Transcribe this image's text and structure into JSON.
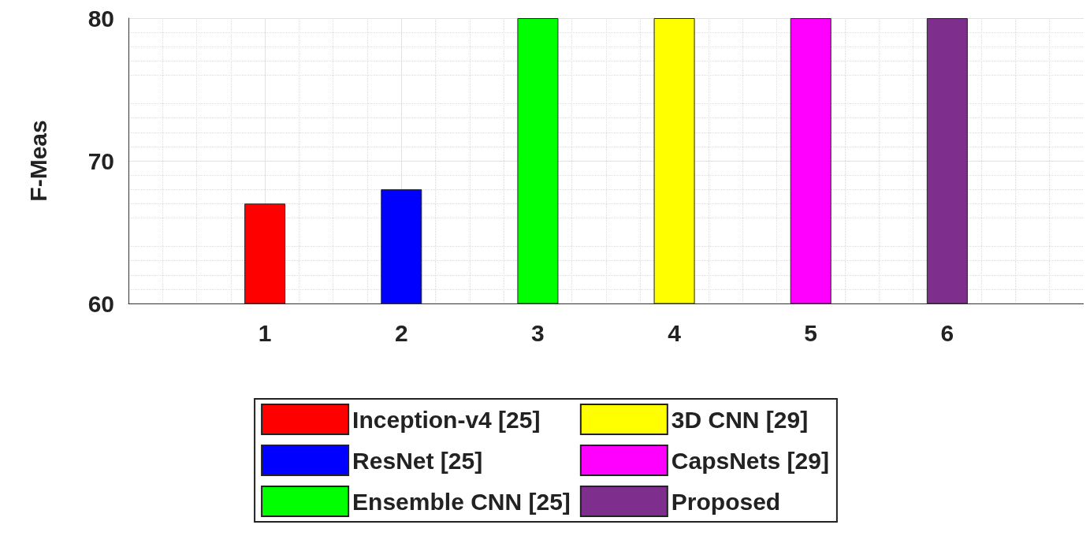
{
  "chart_data": {
    "type": "bar",
    "ylabel": "F-Meas",
    "x": [
      1,
      2,
      3,
      4,
      5,
      6
    ],
    "xlim": [
      0,
      7
    ],
    "xticks": [
      1,
      2,
      3,
      4,
      5,
      6
    ],
    "ylim": [
      60,
      80
    ],
    "yticks": [
      60,
      70,
      80
    ],
    "grid": true,
    "legend": "bottom",
    "series": [
      {
        "name": "Inception-v4 [25]",
        "color": "#ff0000",
        "values": [
          67,
          null,
          null,
          null,
          null,
          null
        ]
      },
      {
        "name": "ResNet [25]",
        "color": "#0000ff",
        "values": [
          null,
          68,
          null,
          null,
          null,
          null
        ]
      },
      {
        "name": "Ensemble CNN [25]",
        "color": "#00ff00",
        "values": [
          null,
          null,
          80,
          null,
          null,
          null
        ]
      },
      {
        "name": "3D CNN [29]",
        "color": "#ffff00",
        "values": [
          null,
          null,
          null,
          80,
          null,
          null
        ]
      },
      {
        "name": "CapsNets [29]",
        "color": "#ff00ff",
        "values": [
          null,
          null,
          null,
          null,
          80,
          null
        ]
      },
      {
        "name": "Proposed",
        "color": "#7e2f8e",
        "values": [
          null,
          null,
          null,
          null,
          null,
          80
        ]
      }
    ]
  }
}
